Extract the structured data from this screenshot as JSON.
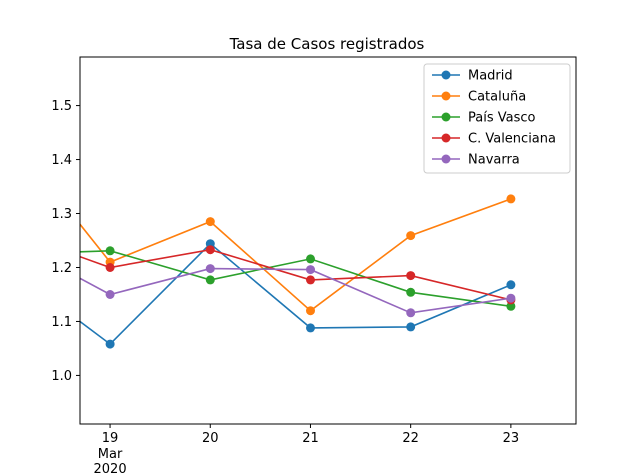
{
  "chart_data": {
    "type": "line",
    "title": "Tasa de Casos registrados",
    "xlabel": "",
    "ylabel": "",
    "x": [
      "19",
      "20",
      "21",
      "22",
      "23"
    ],
    "x_sublabels": [
      "Mar",
      "2020"
    ],
    "xlim": [
      18.7,
      23.65
    ],
    "ylim": [
      0.91,
      1.59
    ],
    "yticks": [
      "1.0",
      "1.1",
      "1.2",
      "1.3",
      "1.4",
      "1.5"
    ],
    "grid": false,
    "legend_position": "top-right",
    "series": [
      {
        "name": "Madrid",
        "color": "#1f77b4",
        "lead_in": 1.1,
        "values": [
          1.058,
          1.244,
          1.088,
          1.09,
          1.168
        ]
      },
      {
        "name": "Cataluña",
        "color": "#ff7f0e",
        "lead_in": 1.28,
        "values": [
          1.21,
          1.285,
          1.12,
          1.259,
          1.327
        ]
      },
      {
        "name": "País Vasco",
        "color": "#2ca02c",
        "lead_in": 1.229,
        "values": [
          1.231,
          1.177,
          1.216,
          1.154,
          1.128
        ]
      },
      {
        "name": "C. Valenciana",
        "color": "#d62728",
        "lead_in": 1.22,
        "values": [
          1.2,
          1.233,
          1.177,
          1.185,
          1.14
        ]
      },
      {
        "name": "Navarra",
        "color": "#9467bd",
        "lead_in": 1.18,
        "values": [
          1.15,
          1.198,
          1.196,
          1.116,
          1.143
        ]
      }
    ]
  }
}
